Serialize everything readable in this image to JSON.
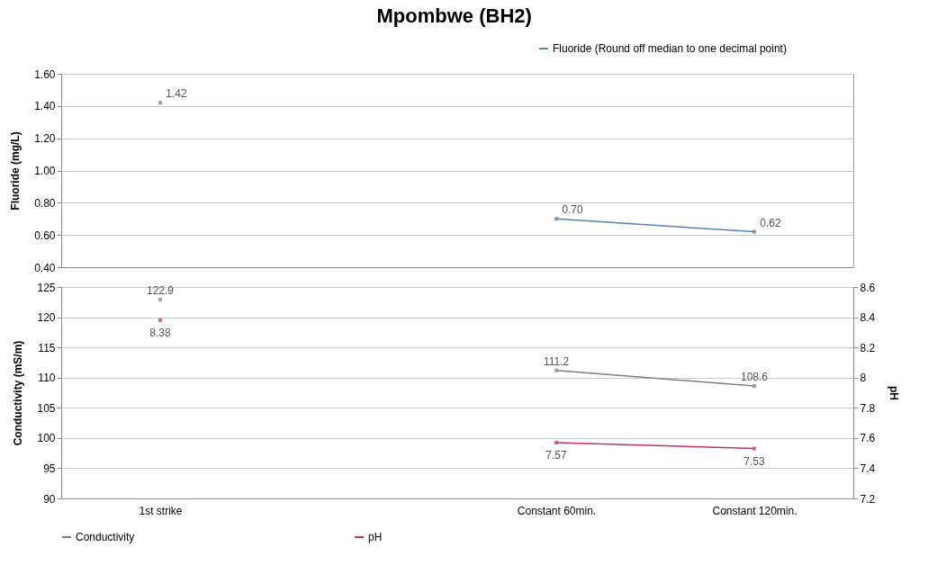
{
  "chart_data": [
    {
      "type": "line",
      "title": "Mpombwe (BH2)",
      "categories": [
        null,
        null,
        null,
        null
      ],
      "ylabel": "Fluoride (mg/L)",
      "ylim": [
        0.4,
        1.6
      ],
      "yticks": [
        {
          "value": 0.4,
          "label": "0.40"
        },
        {
          "value": 0.6,
          "label": "0.60"
        },
        {
          "value": 0.8,
          "label": "0.80"
        },
        {
          "value": 1.0,
          "label": "1.00"
        },
        {
          "value": 1.2,
          "label": "1.20"
        },
        {
          "value": 1.4,
          "label": "1.40"
        },
        {
          "value": 1.6,
          "label": "1.60"
        }
      ],
      "grid": "y",
      "legend": "top right",
      "tick_labels": "y",
      "marker": "square",
      "series": [
        {
          "name": "Fluoride (Round off median to one decimal point)",
          "color": "#4f81bd",
          "values": [
            1.42,
            null,
            0.7,
            0.62
          ],
          "value_labels": [
            "1.42",
            null,
            "0.70",
            "0.62"
          ]
        }
      ]
    },
    {
      "type": "line",
      "categories": [
        "1st strike",
        null,
        "Constant 60min.",
        "Constant 120min."
      ],
      "ylabel": "Conductivity (mS/m)",
      "y2label": "pH",
      "ylim": [
        90,
        125
      ],
      "yticks": [
        90,
        95,
        100,
        105,
        110,
        115,
        120,
        125
      ],
      "y2lim": [
        7.2,
        8.6
      ],
      "y2ticks": [
        7.2,
        7.4,
        7.6,
        7.8,
        8,
        8.2,
        8.4,
        8.6
      ],
      "grid": "y",
      "legend": "bottom",
      "data_labels": true,
      "marker": "square",
      "series": [
        {
          "name": "Conductivity",
          "color": "#7f7f7f",
          "values": [
            122.9,
            null,
            111.2,
            108.6
          ]
        },
        {
          "name": "pH",
          "color": "#c0365a",
          "values": [
            8.38,
            null,
            7.57,
            7.53
          ],
          "axis": "y2"
        }
      ]
    }
  ]
}
